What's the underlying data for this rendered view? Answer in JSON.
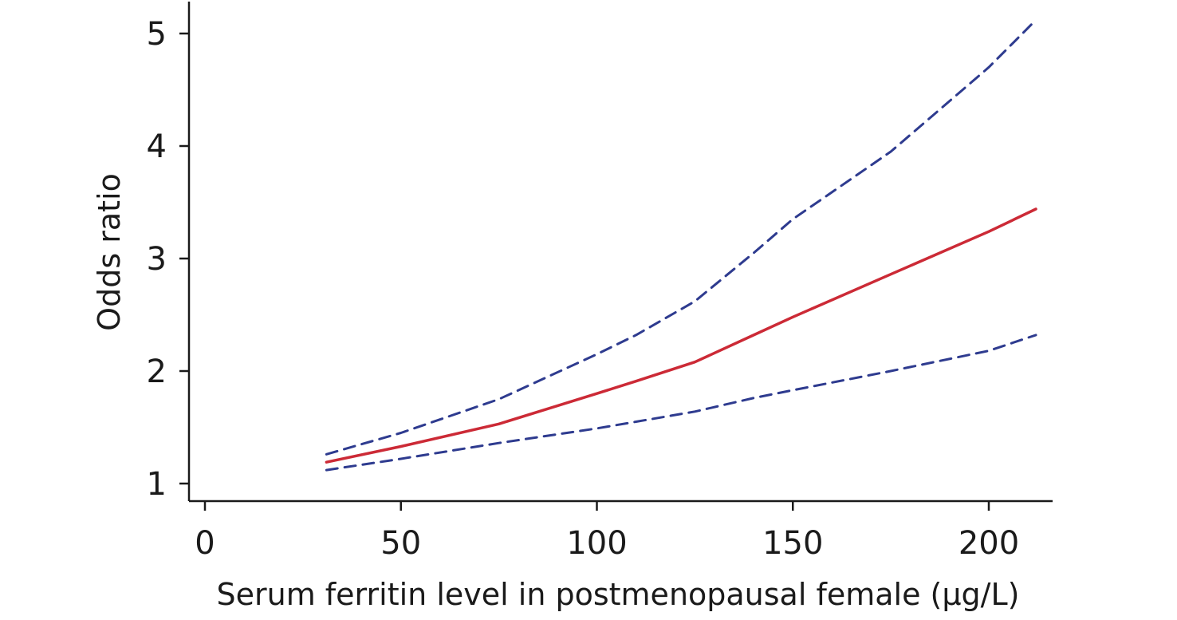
{
  "chart_data": {
    "type": "line",
    "xlabel": "Serum ferritin level in postmenopausal female (μg/L)",
    "ylabel": "Odds ratio",
    "xlim": [
      0,
      215
    ],
    "ylim": [
      1,
      5.2
    ],
    "x_ticks": [
      "0",
      "50",
      "100",
      "150",
      "200"
    ],
    "y_ticks": [
      "1",
      "2",
      "3",
      "4",
      "5"
    ],
    "grid": false,
    "series": [
      {
        "role": "upper_ci",
        "style": "dashed",
        "color": "#2e3b8f",
        "x": [
          31,
          50,
          75,
          100,
          110,
          125,
          140,
          150,
          175,
          200,
          212
        ],
        "y": [
          1.26,
          1.45,
          1.75,
          2.15,
          2.32,
          2.62,
          3.05,
          3.35,
          3.95,
          4.7,
          5.12
        ]
      },
      {
        "role": "estimate",
        "style": "solid",
        "color": "#cc2a36",
        "x": [
          31,
          50,
          75,
          100,
          110,
          125,
          140,
          150,
          175,
          200,
          212
        ],
        "y": [
          1.19,
          1.33,
          1.53,
          1.8,
          1.91,
          2.08,
          2.32,
          2.48,
          2.86,
          3.24,
          3.44
        ]
      },
      {
        "role": "lower_ci",
        "style": "dashed",
        "color": "#2e3b8f",
        "x": [
          31,
          50,
          75,
          100,
          110,
          125,
          140,
          150,
          175,
          200,
          212
        ],
        "y": [
          1.12,
          1.22,
          1.36,
          1.49,
          1.55,
          1.64,
          1.76,
          1.83,
          2.0,
          2.18,
          2.32
        ]
      }
    ]
  }
}
